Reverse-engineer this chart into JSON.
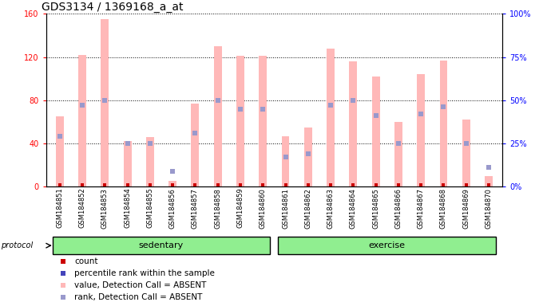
{
  "title": "GDS3134 / 1369168_a_at",
  "samples": [
    "GSM184851",
    "GSM184852",
    "GSM184853",
    "GSM184854",
    "GSM184855",
    "GSM184856",
    "GSM184857",
    "GSM184858",
    "GSM184859",
    "GSM184860",
    "GSM184861",
    "GSM184862",
    "GSM184863",
    "GSM184864",
    "GSM184865",
    "GSM184866",
    "GSM184867",
    "GSM184868",
    "GSM184869",
    "GSM184870"
  ],
  "pink_values": [
    65,
    122,
    155,
    42,
    46,
    5,
    77,
    130,
    121,
    121,
    47,
    55,
    128,
    116,
    102,
    60,
    104,
    117,
    62,
    10
  ],
  "blue_ranks_pct": [
    29,
    47,
    50,
    25,
    25,
    9,
    31,
    50,
    45,
    45,
    17,
    19,
    47,
    50,
    41,
    25,
    42,
    46,
    25,
    11
  ],
  "groups": [
    {
      "label": "sedentary",
      "start": 0,
      "end": 9
    },
    {
      "label": "exercise",
      "start": 10,
      "end": 19
    }
  ],
  "left_ylim": [
    0,
    160
  ],
  "right_ylim": [
    0,
    100
  ],
  "left_yticks": [
    0,
    40,
    80,
    120,
    160
  ],
  "right_yticks": [
    0,
    25,
    50,
    75,
    100
  ],
  "right_yticklabels": [
    "0%",
    "25%",
    "50%",
    "75%",
    "100%"
  ],
  "bar_color_pink": "#ffb8b8",
  "bar_color_blue": "#9999cc",
  "bar_color_red": "#cc0000",
  "background_plot": "#ffffff",
  "background_group": "#90ee90",
  "title_fontsize": 10,
  "tick_fontsize": 7,
  "bar_width": 0.35,
  "protocol_label": "protocol",
  "legend_items": [
    {
      "color": "#cc0000",
      "label": "count"
    },
    {
      "color": "#4444bb",
      "label": "percentile rank within the sample"
    },
    {
      "color": "#ffb8b8",
      "label": "value, Detection Call = ABSENT"
    },
    {
      "color": "#9999cc",
      "label": "rank, Detection Call = ABSENT"
    }
  ]
}
